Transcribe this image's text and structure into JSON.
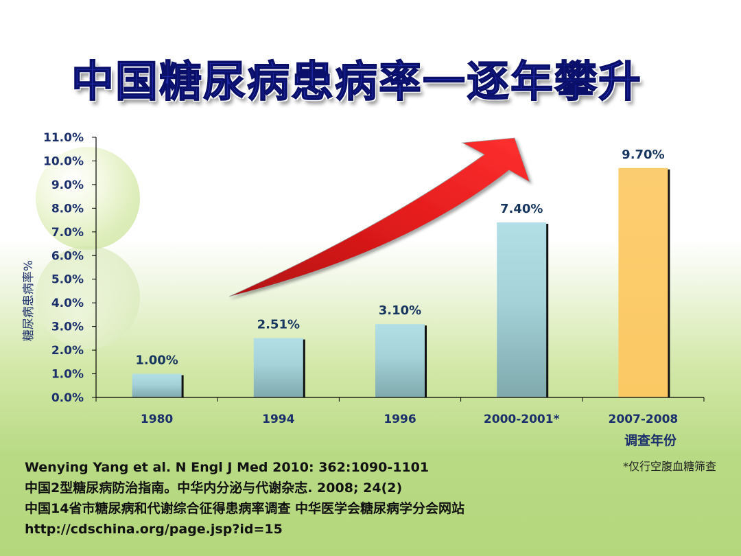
{
  "title": "中国糖尿病患病率一逐年攀升",
  "chart_data": {
    "type": "bar",
    "categories": [
      "1980",
      "1994",
      "1996",
      "2000-2001*",
      "2007-2008"
    ],
    "values": [
      1.0,
      2.51,
      3.1,
      7.4,
      9.7
    ],
    "data_labels": [
      "1.00%",
      "2.51%",
      "3.10%",
      "7.40%",
      "9.70%"
    ],
    "ylim": [
      0,
      11
    ],
    "yticks": [
      "0.0%",
      "1.0%",
      "2.0%",
      "3.0%",
      "4.0%",
      "5.0%",
      "6.0%",
      "7.0%",
      "8.0%",
      "9.0%",
      "10.0%",
      "11.0%"
    ],
    "ylabel": "糖尿病患病率%",
    "xlabel": "调查年份",
    "bar_colors": [
      "#a9d7de",
      "#a9d7de",
      "#a9d7de",
      "#a9d7de",
      "#fccc6e"
    ],
    "trend_arrow_color": "#e0191a"
  },
  "footnote": "*仅行空腹血糖筛查",
  "references": [
    "Wenying Yang et al. N Engl J Med 2010: 362:1090-1101",
    "中国2型糖尿病防治指南。中华内分泌与代谢杂志. 2008; 24(2)",
    "中国14省市糖尿病和代谢综合征得患病率调查 中华医学会糖尿病学分会网站",
    "http://cdschina.org/page.jsp?id=15"
  ]
}
